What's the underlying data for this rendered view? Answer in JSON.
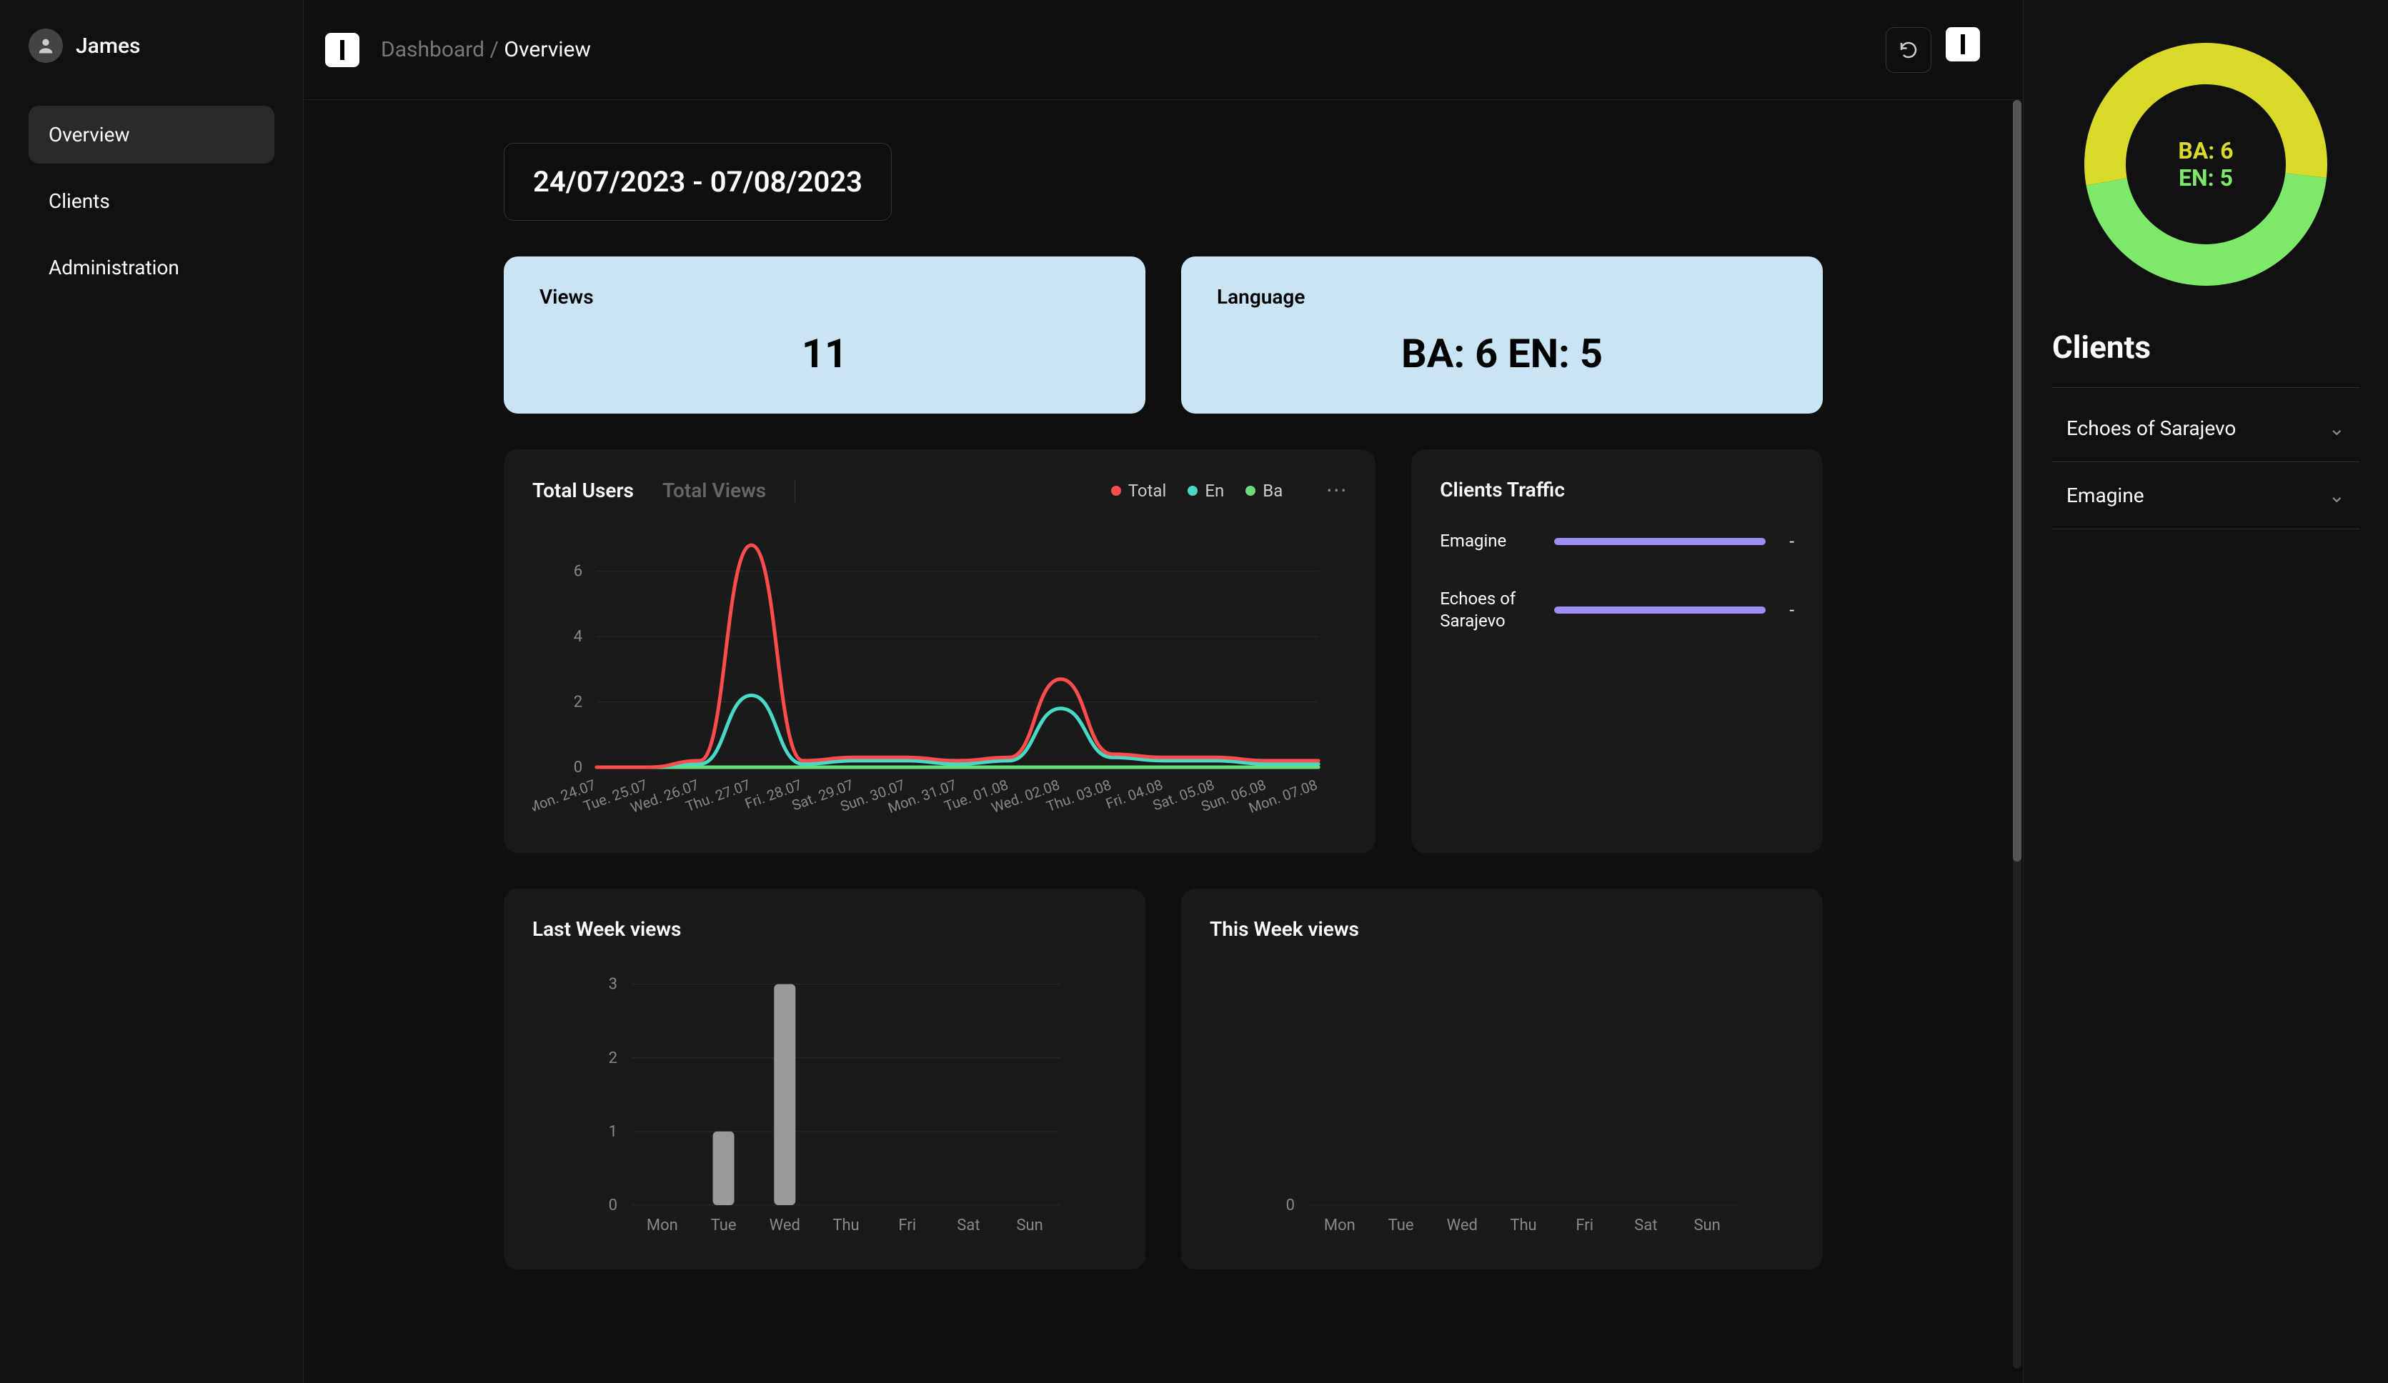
{
  "user": {
    "name": "James"
  },
  "nav": {
    "items": [
      {
        "label": "Overview",
        "active": true
      },
      {
        "label": "Clients",
        "active": false
      },
      {
        "label": "Administration",
        "active": false
      }
    ]
  },
  "breadcrumb": {
    "root": "Dashboard",
    "sep": "/",
    "current": "Overview"
  },
  "date_range": "24/07/2023 - 07/08/2023",
  "stat_cards": {
    "views": {
      "label": "Views",
      "value": "11"
    },
    "language": {
      "label": "Language",
      "value": "BA: 6 EN: 5"
    }
  },
  "users_chart": {
    "tabs": [
      {
        "label": "Total Users",
        "active": true
      },
      {
        "label": "Total Views",
        "active": false
      }
    ],
    "legend": [
      {
        "label": "Total",
        "color": "#ff4d4d"
      },
      {
        "label": "En",
        "color": "#4ad9c4"
      },
      {
        "label": "Ba",
        "color": "#6bdc7a"
      }
    ],
    "y_ticks": [
      0,
      2,
      4,
      6
    ],
    "y_max": 7,
    "x_labels": [
      "Mon. 24.07",
      "Tue. 25.07",
      "Wed. 26.07",
      "Thu. 27.07",
      "Fri. 28.07",
      "Sat. 29.07",
      "Sun. 30.07",
      "Mon. 31.07",
      "Tue. 01.08",
      "Wed. 02.08",
      "Thu. 03.08",
      "Fri. 04.08",
      "Sat. 05.08",
      "Sun. 06.08",
      "Mon. 07.08"
    ],
    "series": {
      "total": {
        "color": "#ff4d4d",
        "values": [
          0,
          0,
          0.2,
          6.8,
          0.2,
          0.3,
          0.3,
          0.2,
          0.3,
          2.7,
          0.4,
          0.3,
          0.3,
          0.2,
          0.2
        ]
      },
      "en": {
        "color": "#4ad9c4",
        "values": [
          0,
          0,
          0.1,
          2.2,
          0.1,
          0.2,
          0.2,
          0.1,
          0.2,
          1.8,
          0.3,
          0.2,
          0.2,
          0.1,
          0.1
        ]
      },
      "ba": {
        "color": "#6bdc7a",
        "values": [
          0,
          0,
          0.0,
          0.0,
          0.0,
          0.0,
          0.0,
          0.0,
          0.0,
          0.0,
          0.0,
          0.0,
          0.0,
          0.0,
          0.0
        ]
      }
    },
    "line_width": 5,
    "background": "#1a1a1a",
    "grid_color": "#2a2a2a"
  },
  "clients_traffic": {
    "title": "Clients Traffic",
    "rows": [
      {
        "label": "Emagine",
        "value": "-",
        "bar_color": "#9a8ff5",
        "bar_pct": 100
      },
      {
        "label": "Echoes of Sarajevo",
        "value": "-",
        "bar_color": "#9a8ff5",
        "bar_pct": 100
      }
    ]
  },
  "last_week": {
    "title": "Last Week views",
    "y_ticks": [
      0,
      1,
      2,
      3
    ],
    "y_max": 3.2,
    "x_labels": [
      "Mon",
      "Tue",
      "Wed",
      "Thu",
      "Fri",
      "Sat",
      "Sun"
    ],
    "values": [
      0,
      1,
      3,
      0,
      0,
      0,
      0
    ],
    "bar_color": "#9a9a9a",
    "bar_width": 0.35,
    "grid_color": "#2a2a2a"
  },
  "this_week": {
    "title": "This Week views",
    "y_ticks": [
      0
    ],
    "y_max": 1,
    "x_labels": [
      "Mon",
      "Tue",
      "Wed",
      "Thu",
      "Fri",
      "Sat",
      "Sun"
    ],
    "values": [
      0,
      0,
      0,
      0,
      0,
      0,
      0
    ],
    "bar_color": "#9a9a9a",
    "bar_width": 0.35,
    "grid_color": "#2a2a2a"
  },
  "donut": {
    "ba": {
      "label": "BA: 6",
      "value": 6,
      "color": "#d9d92a"
    },
    "en": {
      "label": "EN: 5",
      "value": 5,
      "color": "#7de86a"
    },
    "ring_width": 58
  },
  "right_rail": {
    "title": "Clients",
    "items": [
      {
        "label": "Echoes of Sarajevo"
      },
      {
        "label": "Emagine"
      }
    ]
  }
}
